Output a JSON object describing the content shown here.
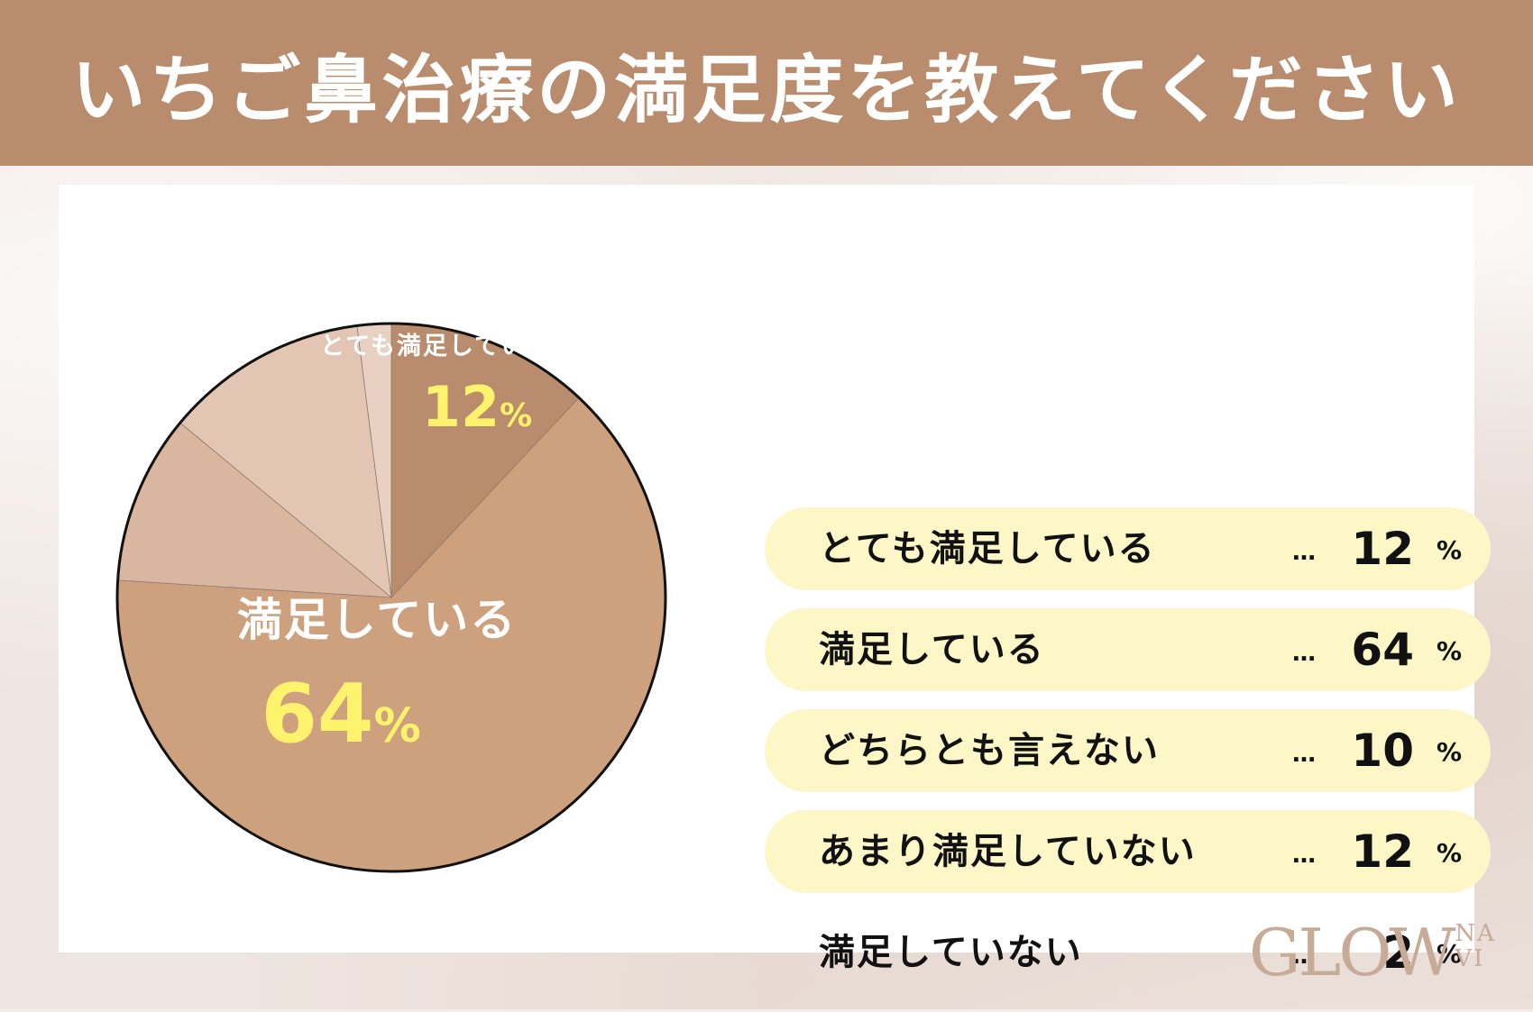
{
  "header": {
    "title": "いちご鼻治療の満足度を教えてください"
  },
  "chart_data": {
    "type": "pie",
    "title": "いちご鼻治療の満足度を教えてください",
    "slices": [
      {
        "label": "とても満足している",
        "value": 12,
        "color": "#b88c6c"
      },
      {
        "label": "満足している",
        "value": 64,
        "color": "#cea17e"
      },
      {
        "label": "どちらとも言えない",
        "value": 10,
        "color": "#d9b69f"
      },
      {
        "label": "あまり満足していない",
        "value": 12,
        "color": "#e2c6b3"
      },
      {
        "label": "満足していない",
        "value": 2,
        "color": "#e8d1c2"
      }
    ],
    "pie_labels": [
      {
        "slice": 0,
        "name": "とても満足している",
        "value": "12",
        "unit": "%"
      },
      {
        "slice": 1,
        "name": "満足している",
        "value": "64",
        "unit": "%"
      }
    ],
    "value_label_color": "#fff36e",
    "legend_placement": "right"
  },
  "legend": {
    "dots": "…",
    "unit": "%",
    "rows": [
      {
        "label": "とても満足している",
        "value": "12",
        "highlight": true
      },
      {
        "label": "満足している",
        "value": "64",
        "highlight": true
      },
      {
        "label": "どちらとも言えない",
        "value": "10",
        "highlight": true
      },
      {
        "label": "あまり満足していない",
        "value": "12",
        "highlight": true
      },
      {
        "label": "満足していない",
        "value": "2",
        "highlight": false
      }
    ]
  },
  "logo": {
    "main": "GLOW",
    "sub_top": "NA",
    "sub_bottom": "VI"
  }
}
